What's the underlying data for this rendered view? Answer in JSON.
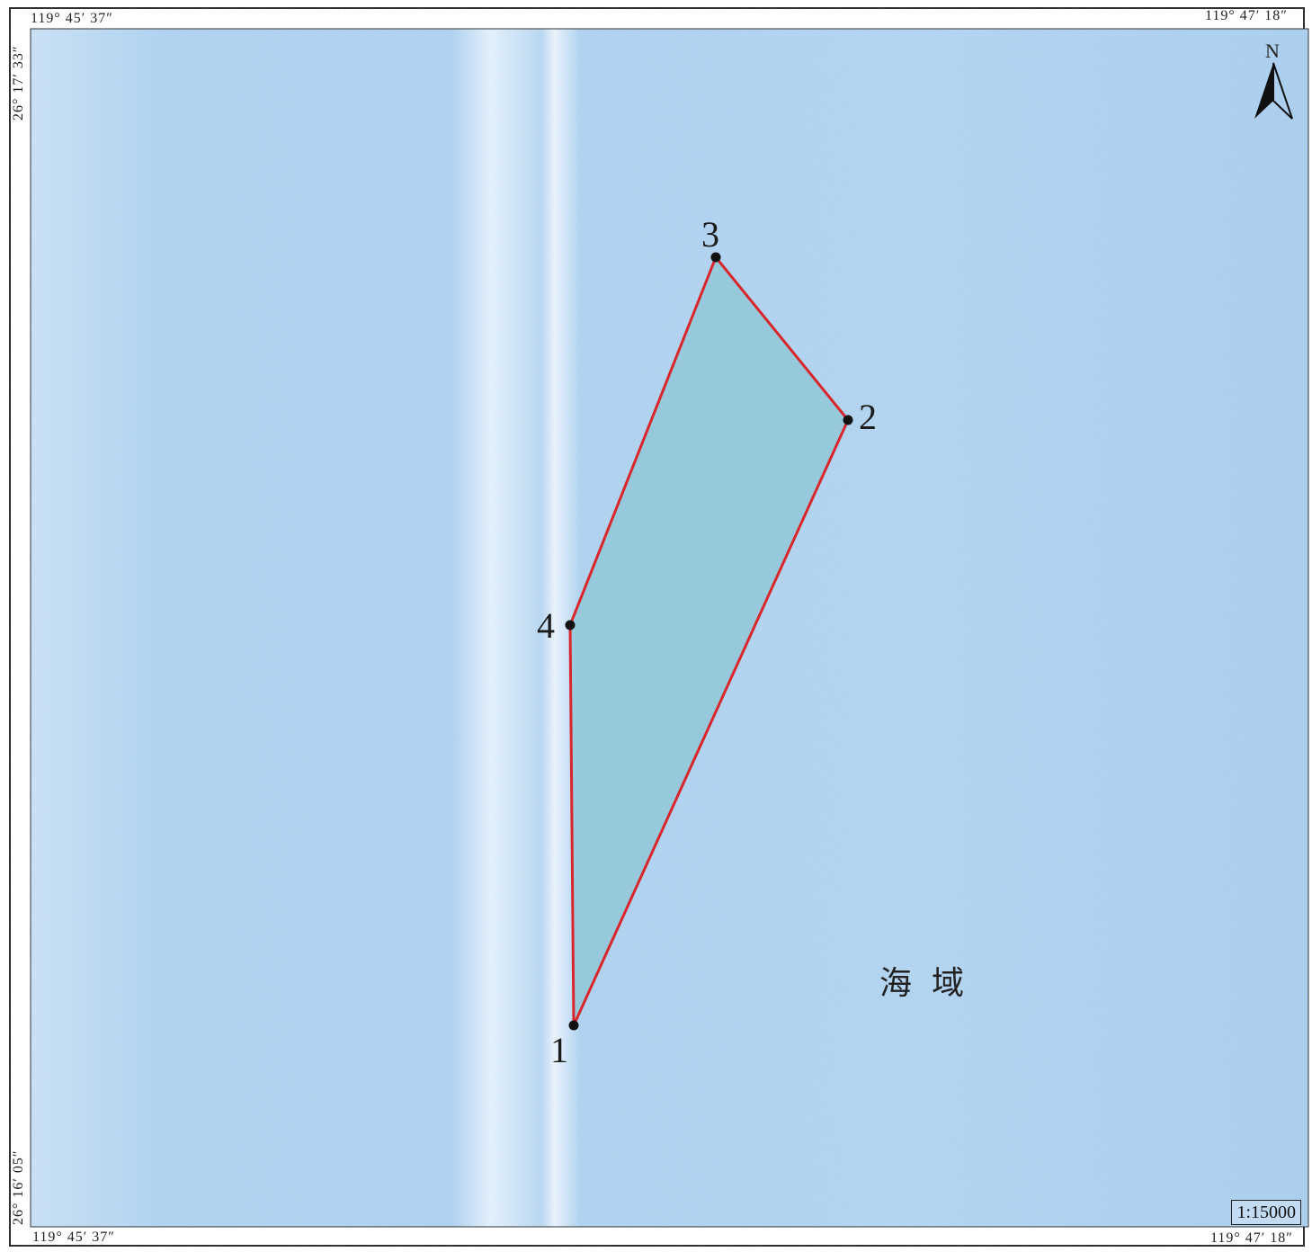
{
  "map": {
    "lon_left": "119° 45′ 37″",
    "lon_right": "119° 47′ 18″",
    "lat_top": "26° 17′ 33″",
    "lat_bottom": "26° 16′ 05″",
    "scale": "1:15000",
    "north_label": "N",
    "area_label": "海域",
    "colors": {
      "sea": "#a7cdee",
      "sea_band": "#d8e9f7",
      "polygon_fill": "#8ec6d6",
      "polygon_stroke": "#d8262b",
      "frame": "#1a1a1a"
    },
    "vertices": [
      {
        "label": "1"
      },
      {
        "label": "2"
      },
      {
        "label": "3"
      },
      {
        "label": "4"
      }
    ]
  }
}
